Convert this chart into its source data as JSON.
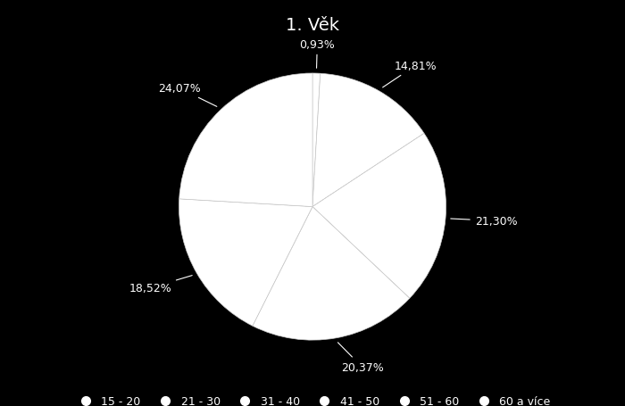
{
  "title": "1. Věk",
  "labels": [
    "15 - 20",
    "21 - 30",
    "31 - 40",
    "41 - 50",
    "51 - 60",
    "60 a více"
  ],
  "percentages": [
    0.93,
    14.81,
    21.3,
    20.37,
    18.52,
    24.07
  ],
  "pct_labels": [
    "0,93%",
    "14,81%",
    "21,30%",
    "20,37%",
    "18,52%",
    "24,07%"
  ],
  "pie_color": "#ffffff",
  "background_color": "#000000",
  "text_color": "#ffffff",
  "title_fontsize": 14,
  "label_fontsize": 9,
  "legend_fontsize": 9,
  "legend_marker_color": "#ffffff"
}
